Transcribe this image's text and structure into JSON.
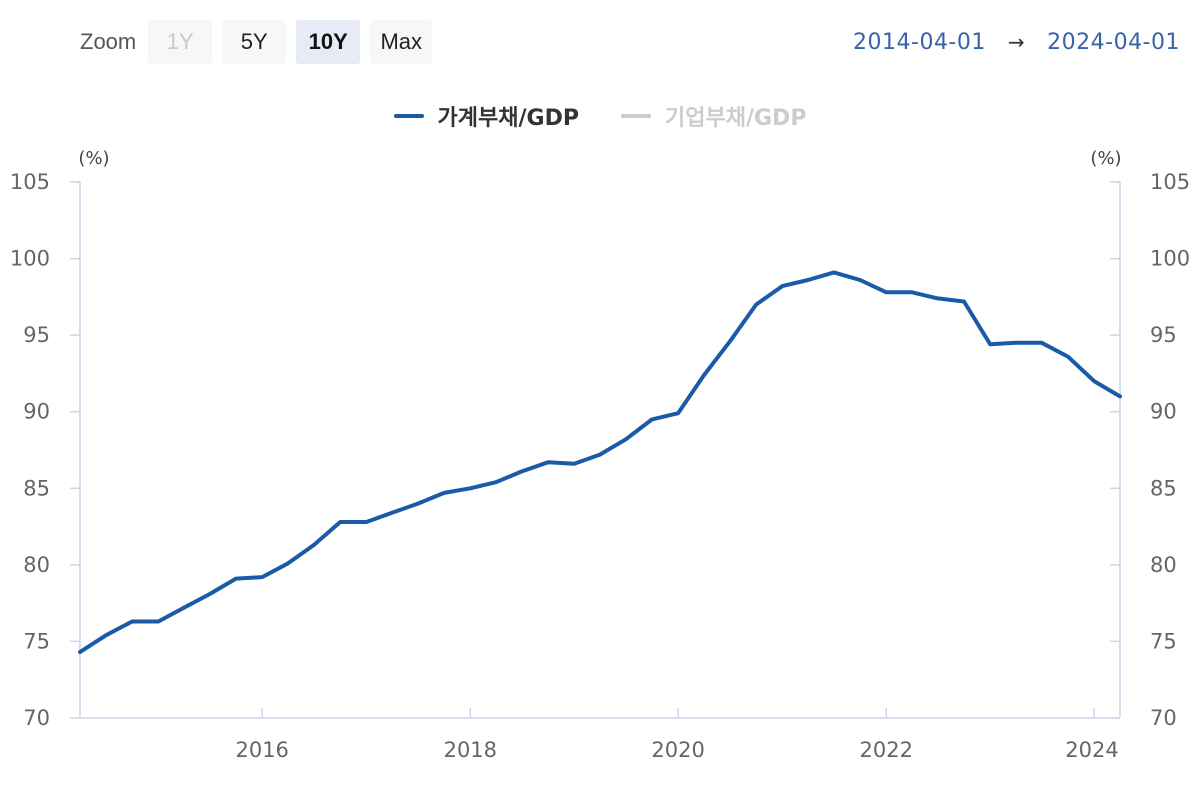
{
  "zoom": {
    "label": "Zoom",
    "buttons": [
      {
        "label": "1Y",
        "state": "disabled"
      },
      {
        "label": "5Y",
        "state": "normal"
      },
      {
        "label": "10Y",
        "state": "active"
      },
      {
        "label": "Max",
        "state": "normal"
      }
    ]
  },
  "range": {
    "from": "2014-04-01",
    "arrow": "→",
    "to": "2024-04-01"
  },
  "legend": [
    {
      "label": "가계부채/GDP",
      "color": "#1a5aa6",
      "visible": true
    },
    {
      "label": "기업부채/GDP",
      "color": "#cccccc",
      "visible": false
    }
  ],
  "chart_data": {
    "type": "line",
    "left_unit": "(%)",
    "right_unit": "(%)",
    "ylim": [
      70,
      105
    ],
    "yticks": [
      "70",
      "75",
      "80",
      "85",
      "90",
      "95",
      "100",
      "105"
    ],
    "xlim": [
      "2014-04-01",
      "2024-04-01"
    ],
    "xticks": [
      "2016",
      "2018",
      "2020",
      "2022",
      "2024"
    ],
    "grid": false,
    "legend_position": "top-center",
    "series": [
      {
        "name": "가계부채/GDP",
        "color": "#1a5aa6",
        "x": [
          "2014-04-01",
          "2014-07-01",
          "2014-10-01",
          "2015-01-01",
          "2015-04-01",
          "2015-07-01",
          "2015-10-01",
          "2016-01-01",
          "2016-04-01",
          "2016-07-01",
          "2016-10-01",
          "2017-01-01",
          "2017-04-01",
          "2017-07-01",
          "2017-10-01",
          "2018-01-01",
          "2018-04-01",
          "2018-07-01",
          "2018-10-01",
          "2019-01-01",
          "2019-04-01",
          "2019-07-01",
          "2019-10-01",
          "2020-01-01",
          "2020-04-01",
          "2020-07-01",
          "2020-10-01",
          "2021-01-01",
          "2021-04-01",
          "2021-07-01",
          "2021-10-01",
          "2022-01-01",
          "2022-04-01",
          "2022-07-01",
          "2022-10-01",
          "2023-01-01",
          "2023-04-01",
          "2023-07-01",
          "2023-10-01",
          "2024-01-01",
          "2024-04-01"
        ],
        "values": [
          74.3,
          75.4,
          76.3,
          76.3,
          77.2,
          78.1,
          79.1,
          79.2,
          80.1,
          81.3,
          82.8,
          82.8,
          83.4,
          84.0,
          84.7,
          85.0,
          85.4,
          86.1,
          86.7,
          86.6,
          87.2,
          88.2,
          89.5,
          89.9,
          92.4,
          94.6,
          97.0,
          98.2,
          98.6,
          99.1,
          98.6,
          97.8,
          97.8,
          97.4,
          97.2,
          94.4,
          94.5,
          94.5,
          93.6,
          92.0,
          91.0
        ]
      }
    ]
  }
}
